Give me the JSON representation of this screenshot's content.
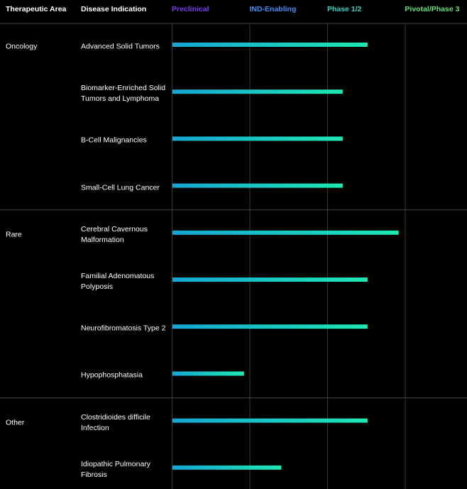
{
  "chart_data": {
    "type": "pipeline",
    "headers": [
      "Therapeutic Area",
      "Disease Indication"
    ],
    "xlim": [
      0,
      3.8
    ],
    "xticks": [
      {
        "value": 0,
        "label": "Preclinical"
      },
      {
        "value": 1,
        "label": "IND-Enabling"
      },
      {
        "value": 2,
        "label": "Phase 1/2"
      },
      {
        "value": 3,
        "label": "Pivotal/Phase 3"
      }
    ],
    "xtick_colors": [
      "#7a3cf0",
      "#3d8ef5",
      "#2fd3c0",
      "#5fe07a"
    ],
    "bar_colors": [
      "#14a6d4",
      "#1ee8b2"
    ],
    "grid": true,
    "groups": [
      {
        "name": "Oncology",
        "categories": [
          "Advanced Solid Tumors",
          "Biomarker-Enriched Solid Tumors and Lymphoma",
          "B-Cell Malignancies",
          "Small-Cell Lung Cancer"
        ],
        "values": [
          2.52,
          2.2,
          2.2,
          2.2
        ]
      },
      {
        "name": "Rare",
        "categories": [
          "Cerebral Cavernous Malformation",
          "Familial Adenomatous Polyposis",
          "Neurofibromatosis Type 2",
          "Hypophosphatasia"
        ],
        "values": [
          2.92,
          2.52,
          2.52,
          0.93
        ]
      },
      {
        "name": "Other",
        "categories": [
          "Clostridioides difficile Infection",
          "Idiopathic Pulmonary Fibrosis"
        ],
        "values": [
          2.52,
          1.41
        ]
      }
    ]
  }
}
